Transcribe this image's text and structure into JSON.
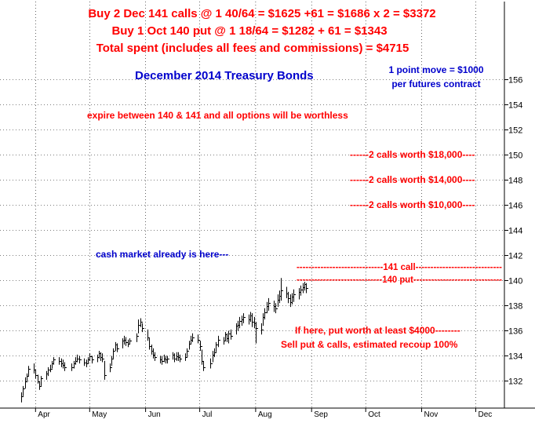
{
  "header": {
    "line1": "Buy 2 Dec 141 calls @ 1 40/64 = $1625 +61 = $1686 x 2 = $3372",
    "line2": "Buy 1 Oct 140 put @ 1 18/64 = $1282 + 61 = $1343",
    "line3": "Total spent (includes all fees and commissions) = $4715"
  },
  "annotations": {
    "point_move_1": "1 point move = $1000",
    "point_move_2": "per futures contract",
    "expire": "expire between 140 & 141 and all options will be worthless",
    "calls_150": "------2 calls worth $18,000----",
    "calls_148": "------2 calls worth $14,000----",
    "calls_146": "------2 calls worth $10,000----",
    "cash_market": "cash market already is here---",
    "call_141": "-----------------------------141 call-----------------------------",
    "put_140": "-----------------------------140 put------------------------------",
    "put_worth": "If here, put worth at least $4000--------",
    "sell_put": "Sell put & calls, estimated recoup 100%"
  },
  "colors": {
    "red": "#ff0000",
    "blue": "#0000cc",
    "bars": "#000000",
    "grid": "#000000",
    "background": "#ffffff"
  },
  "chart_data": {
    "type": "ohlc",
    "title": "December 2014 Treasury Bonds",
    "xlabel": "",
    "ylabel": "",
    "ylim": [
      130,
      157
    ],
    "yticks": [
      132,
      134,
      136,
      138,
      140,
      142,
      144,
      146,
      148,
      150,
      152,
      154,
      156
    ],
    "xticks": [
      "Apr",
      "May",
      "Jun",
      "Jul",
      "Aug",
      "Sep",
      "Oct",
      "Nov",
      "Dec"
    ],
    "grid": true,
    "grid_style": "dotted",
    "reference_levels": [
      150,
      148,
      146,
      141,
      140,
      136
    ],
    "bars": [
      {
        "d": "2014-03-24",
        "h": 131.1,
        "l": 130.3,
        "c": 130.8
      },
      {
        "d": "2014-03-25",
        "h": 131.6,
        "l": 130.8,
        "c": 131.4
      },
      {
        "d": "2014-03-26",
        "h": 132.3,
        "l": 131.4,
        "c": 132.0
      },
      {
        "d": "2014-03-27",
        "h": 132.6,
        "l": 131.9,
        "c": 132.4
      },
      {
        "d": "2014-03-28",
        "h": 133.2,
        "l": 132.4,
        "c": 133.0
      },
      {
        "d": "2014-03-31",
        "h": 133.4,
        "l": 132.6,
        "c": 132.9
      },
      {
        "d": "2014-04-01",
        "h": 132.9,
        "l": 132.2,
        "c": 132.5
      },
      {
        "d": "2014-04-02",
        "h": 132.5,
        "l": 131.8,
        "c": 132.0
      },
      {
        "d": "2014-04-03",
        "h": 132.0,
        "l": 131.3,
        "c": 131.6
      },
      {
        "d": "2014-04-04",
        "h": 132.4,
        "l": 131.6,
        "c": 132.2
      },
      {
        "d": "2014-04-07",
        "h": 132.8,
        "l": 132.1,
        "c": 132.6
      },
      {
        "d": "2014-04-08",
        "h": 133.1,
        "l": 132.4,
        "c": 132.9
      },
      {
        "d": "2014-04-09",
        "h": 133.3,
        "l": 132.7,
        "c": 133.0
      },
      {
        "d": "2014-04-10",
        "h": 133.6,
        "l": 133.0,
        "c": 133.4
      },
      {
        "d": "2014-04-11",
        "h": 133.9,
        "l": 133.3,
        "c": 133.7
      },
      {
        "d": "2014-04-14",
        "h": 133.9,
        "l": 133.3,
        "c": 133.6
      },
      {
        "d": "2014-04-15",
        "h": 133.8,
        "l": 133.1,
        "c": 133.4
      },
      {
        "d": "2014-04-16",
        "h": 133.7,
        "l": 133.0,
        "c": 133.3
      },
      {
        "d": "2014-04-17",
        "h": 133.5,
        "l": 132.8,
        "c": 133.1
      },
      {
        "d": "2014-04-21",
        "h": 133.4,
        "l": 132.8,
        "c": 133.1
      },
      {
        "d": "2014-04-22",
        "h": 133.6,
        "l": 133.0,
        "c": 133.4
      },
      {
        "d": "2014-04-23",
        "h": 133.9,
        "l": 133.3,
        "c": 133.6
      },
      {
        "d": "2014-04-24",
        "h": 134.1,
        "l": 133.5,
        "c": 133.8
      },
      {
        "d": "2014-04-25",
        "h": 134.0,
        "l": 133.4,
        "c": 133.7
      },
      {
        "d": "2014-04-28",
        "h": 133.8,
        "l": 133.2,
        "c": 133.5
      },
      {
        "d": "2014-04-29",
        "h": 133.7,
        "l": 133.1,
        "c": 133.4
      },
      {
        "d": "2014-04-30",
        "h": 133.9,
        "l": 133.4,
        "c": 133.7
      },
      {
        "d": "2014-05-01",
        "h": 134.2,
        "l": 133.6,
        "c": 134.0
      },
      {
        "d": "2014-05-02",
        "h": 134.0,
        "l": 133.4,
        "c": 133.7
      },
      {
        "d": "2014-05-05",
        "h": 134.1,
        "l": 133.5,
        "c": 133.9
      },
      {
        "d": "2014-05-06",
        "h": 134.4,
        "l": 133.8,
        "c": 134.2
      },
      {
        "d": "2014-05-07",
        "h": 134.3,
        "l": 133.6,
        "c": 133.9
      },
      {
        "d": "2014-05-08",
        "h": 134.2,
        "l": 133.5,
        "c": 133.8
      },
      {
        "d": "2014-05-09",
        "h": 133.6,
        "l": 132.1,
        "c": 132.5
      },
      {
        "d": "2014-05-12",
        "h": 133.4,
        "l": 132.7,
        "c": 133.1
      },
      {
        "d": "2014-05-13",
        "h": 134.0,
        "l": 133.2,
        "c": 133.8
      },
      {
        "d": "2014-05-14",
        "h": 134.6,
        "l": 133.8,
        "c": 134.4
      },
      {
        "d": "2014-05-15",
        "h": 135.1,
        "l": 134.4,
        "c": 134.9
      },
      {
        "d": "2014-05-16",
        "h": 135.0,
        "l": 134.3,
        "c": 134.6
      },
      {
        "d": "2014-05-19",
        "h": 135.4,
        "l": 134.6,
        "c": 135.2
      },
      {
        "d": "2014-05-20",
        "h": 135.6,
        "l": 134.9,
        "c": 135.3
      },
      {
        "d": "2014-05-21",
        "h": 135.5,
        "l": 134.8,
        "c": 135.1
      },
      {
        "d": "2014-05-22",
        "h": 135.3,
        "l": 134.7,
        "c": 135.0
      },
      {
        "d": "2014-05-23",
        "h": 135.4,
        "l": 134.9,
        "c": 135.2
      },
      {
        "d": "2014-05-27",
        "h": 135.8,
        "l": 135.1,
        "c": 135.6
      },
      {
        "d": "2014-05-28",
        "h": 136.9,
        "l": 135.8,
        "c": 136.5
      },
      {
        "d": "2014-05-29",
        "h": 137.0,
        "l": 136.3,
        "c": 136.7
      },
      {
        "d": "2014-05-30",
        "h": 136.6,
        "l": 135.9,
        "c": 136.2
      },
      {
        "d": "2014-06-02",
        "h": 136.1,
        "l": 135.2,
        "c": 135.5
      },
      {
        "d": "2014-06-03",
        "h": 135.4,
        "l": 134.5,
        "c": 134.8
      },
      {
        "d": "2014-06-04",
        "h": 134.9,
        "l": 134.1,
        "c": 134.4
      },
      {
        "d": "2014-06-05",
        "h": 134.6,
        "l": 133.8,
        "c": 134.1
      },
      {
        "d": "2014-06-06",
        "h": 134.3,
        "l": 133.6,
        "c": 133.9
      },
      {
        "d": "2014-06-09",
        "h": 134.0,
        "l": 133.4,
        "c": 133.7
      },
      {
        "d": "2014-06-10",
        "h": 134.0,
        "l": 133.3,
        "c": 133.6
      },
      {
        "d": "2014-06-11",
        "h": 134.1,
        "l": 133.5,
        "c": 133.8
      },
      {
        "d": "2014-06-12",
        "h": 134.0,
        "l": 133.4,
        "c": 133.7
      },
      {
        "d": "2014-06-13",
        "h": 134.0,
        "l": 133.4,
        "c": 133.8
      },
      {
        "d": "2014-06-16",
        "h": 134.3,
        "l": 133.7,
        "c": 134.1
      },
      {
        "d": "2014-06-17",
        "h": 134.2,
        "l": 133.5,
        "c": 133.8
      },
      {
        "d": "2014-06-18",
        "h": 134.3,
        "l": 133.6,
        "c": 134.0
      },
      {
        "d": "2014-06-19",
        "h": 134.3,
        "l": 133.6,
        "c": 133.9
      },
      {
        "d": "2014-06-20",
        "h": 134.1,
        "l": 133.5,
        "c": 133.8
      },
      {
        "d": "2014-06-23",
        "h": 134.2,
        "l": 133.6,
        "c": 133.9
      },
      {
        "d": "2014-06-24",
        "h": 134.6,
        "l": 133.9,
        "c": 134.4
      },
      {
        "d": "2014-06-25",
        "h": 135.2,
        "l": 134.5,
        "c": 135.0
      },
      {
        "d": "2014-06-26",
        "h": 135.6,
        "l": 134.9,
        "c": 135.3
      },
      {
        "d": "2014-06-27",
        "h": 135.8,
        "l": 135.1,
        "c": 135.5
      },
      {
        "d": "2014-06-30",
        "h": 135.7,
        "l": 135.0,
        "c": 135.3
      },
      {
        "d": "2014-07-01",
        "h": 135.2,
        "l": 134.4,
        "c": 134.8
      },
      {
        "d": "2014-07-02",
        "h": 134.5,
        "l": 133.3,
        "c": 133.6
      },
      {
        "d": "2014-07-03",
        "h": 133.6,
        "l": 132.8,
        "c": 133.1
      },
      {
        "d": "2014-07-07",
        "h": 133.8,
        "l": 133.0,
        "c": 133.4
      },
      {
        "d": "2014-07-08",
        "h": 134.4,
        "l": 133.5,
        "c": 134.1
      },
      {
        "d": "2014-07-09",
        "h": 134.6,
        "l": 133.9,
        "c": 134.3
      },
      {
        "d": "2014-07-10",
        "h": 135.1,
        "l": 134.3,
        "c": 134.9
      },
      {
        "d": "2014-07-11",
        "h": 135.6,
        "l": 134.7,
        "c": 135.3
      },
      {
        "d": "2014-07-14",
        "h": 135.5,
        "l": 134.9,
        "c": 135.2
      },
      {
        "d": "2014-07-15",
        "h": 135.9,
        "l": 135.2,
        "c": 135.7
      },
      {
        "d": "2014-07-16",
        "h": 135.8,
        "l": 135.1,
        "c": 135.4
      },
      {
        "d": "2014-07-17",
        "h": 136.0,
        "l": 135.0,
        "c": 135.8
      },
      {
        "d": "2014-07-18",
        "h": 136.1,
        "l": 135.3,
        "c": 135.6
      },
      {
        "d": "2014-07-21",
        "h": 136.6,
        "l": 135.7,
        "c": 136.4
      },
      {
        "d": "2014-07-22",
        "h": 136.8,
        "l": 136.0,
        "c": 136.5
      },
      {
        "d": "2014-07-23",
        "h": 137.1,
        "l": 136.2,
        "c": 136.8
      },
      {
        "d": "2014-07-24",
        "h": 137.2,
        "l": 136.4,
        "c": 136.9
      },
      {
        "d": "2014-07-25",
        "h": 137.4,
        "l": 136.6,
        "c": 137.1
      },
      {
        "d": "2014-07-28",
        "h": 137.3,
        "l": 136.5,
        "c": 136.9
      },
      {
        "d": "2014-07-29",
        "h": 137.5,
        "l": 136.7,
        "c": 137.2
      },
      {
        "d": "2014-07-30",
        "h": 137.4,
        "l": 136.3,
        "c": 136.7
      },
      {
        "d": "2014-07-31",
        "h": 137.1,
        "l": 136.2,
        "c": 136.6
      },
      {
        "d": "2014-08-01",
        "h": 136.7,
        "l": 135.0,
        "c": 136.2
      },
      {
        "d": "2014-08-04",
        "h": 136.6,
        "l": 135.7,
        "c": 136.1
      },
      {
        "d": "2014-08-05",
        "h": 137.4,
        "l": 136.4,
        "c": 137.1
      },
      {
        "d": "2014-08-06",
        "h": 137.8,
        "l": 136.9,
        "c": 137.5
      },
      {
        "d": "2014-08-07",
        "h": 138.3,
        "l": 137.4,
        "c": 138.0
      },
      {
        "d": "2014-08-08",
        "h": 138.6,
        "l": 137.6,
        "c": 138.2
      },
      {
        "d": "2014-08-11",
        "h": 138.4,
        "l": 137.5,
        "c": 138.0
      },
      {
        "d": "2014-08-12",
        "h": 138.2,
        "l": 137.4,
        "c": 137.8
      },
      {
        "d": "2014-08-13",
        "h": 138.9,
        "l": 137.9,
        "c": 138.5
      },
      {
        "d": "2014-08-14",
        "h": 139.2,
        "l": 138.2,
        "c": 138.8
      },
      {
        "d": "2014-08-15",
        "h": 140.2,
        "l": 138.4,
        "c": 139.2
      },
      {
        "d": "2014-08-18",
        "h": 139.5,
        "l": 138.6,
        "c": 139.0
      },
      {
        "d": "2014-08-19",
        "h": 139.1,
        "l": 138.2,
        "c": 138.6
      },
      {
        "d": "2014-08-20",
        "h": 138.9,
        "l": 137.9,
        "c": 138.3
      },
      {
        "d": "2014-08-21",
        "h": 139.0,
        "l": 138.1,
        "c": 138.7
      },
      {
        "d": "2014-08-22",
        "h": 139.3,
        "l": 138.3,
        "c": 138.9
      },
      {
        "d": "2014-08-25",
        "h": 139.4,
        "l": 138.5,
        "c": 139.1
      },
      {
        "d": "2014-08-26",
        "h": 139.6,
        "l": 138.8,
        "c": 139.3
      },
      {
        "d": "2014-08-27",
        "h": 139.8,
        "l": 139.0,
        "c": 139.5
      },
      {
        "d": "2014-08-28",
        "h": 139.9,
        "l": 139.2,
        "c": 139.7
      },
      {
        "d": "2014-08-29",
        "h": 139.8,
        "l": 139.0,
        "c": 139.4
      }
    ]
  }
}
